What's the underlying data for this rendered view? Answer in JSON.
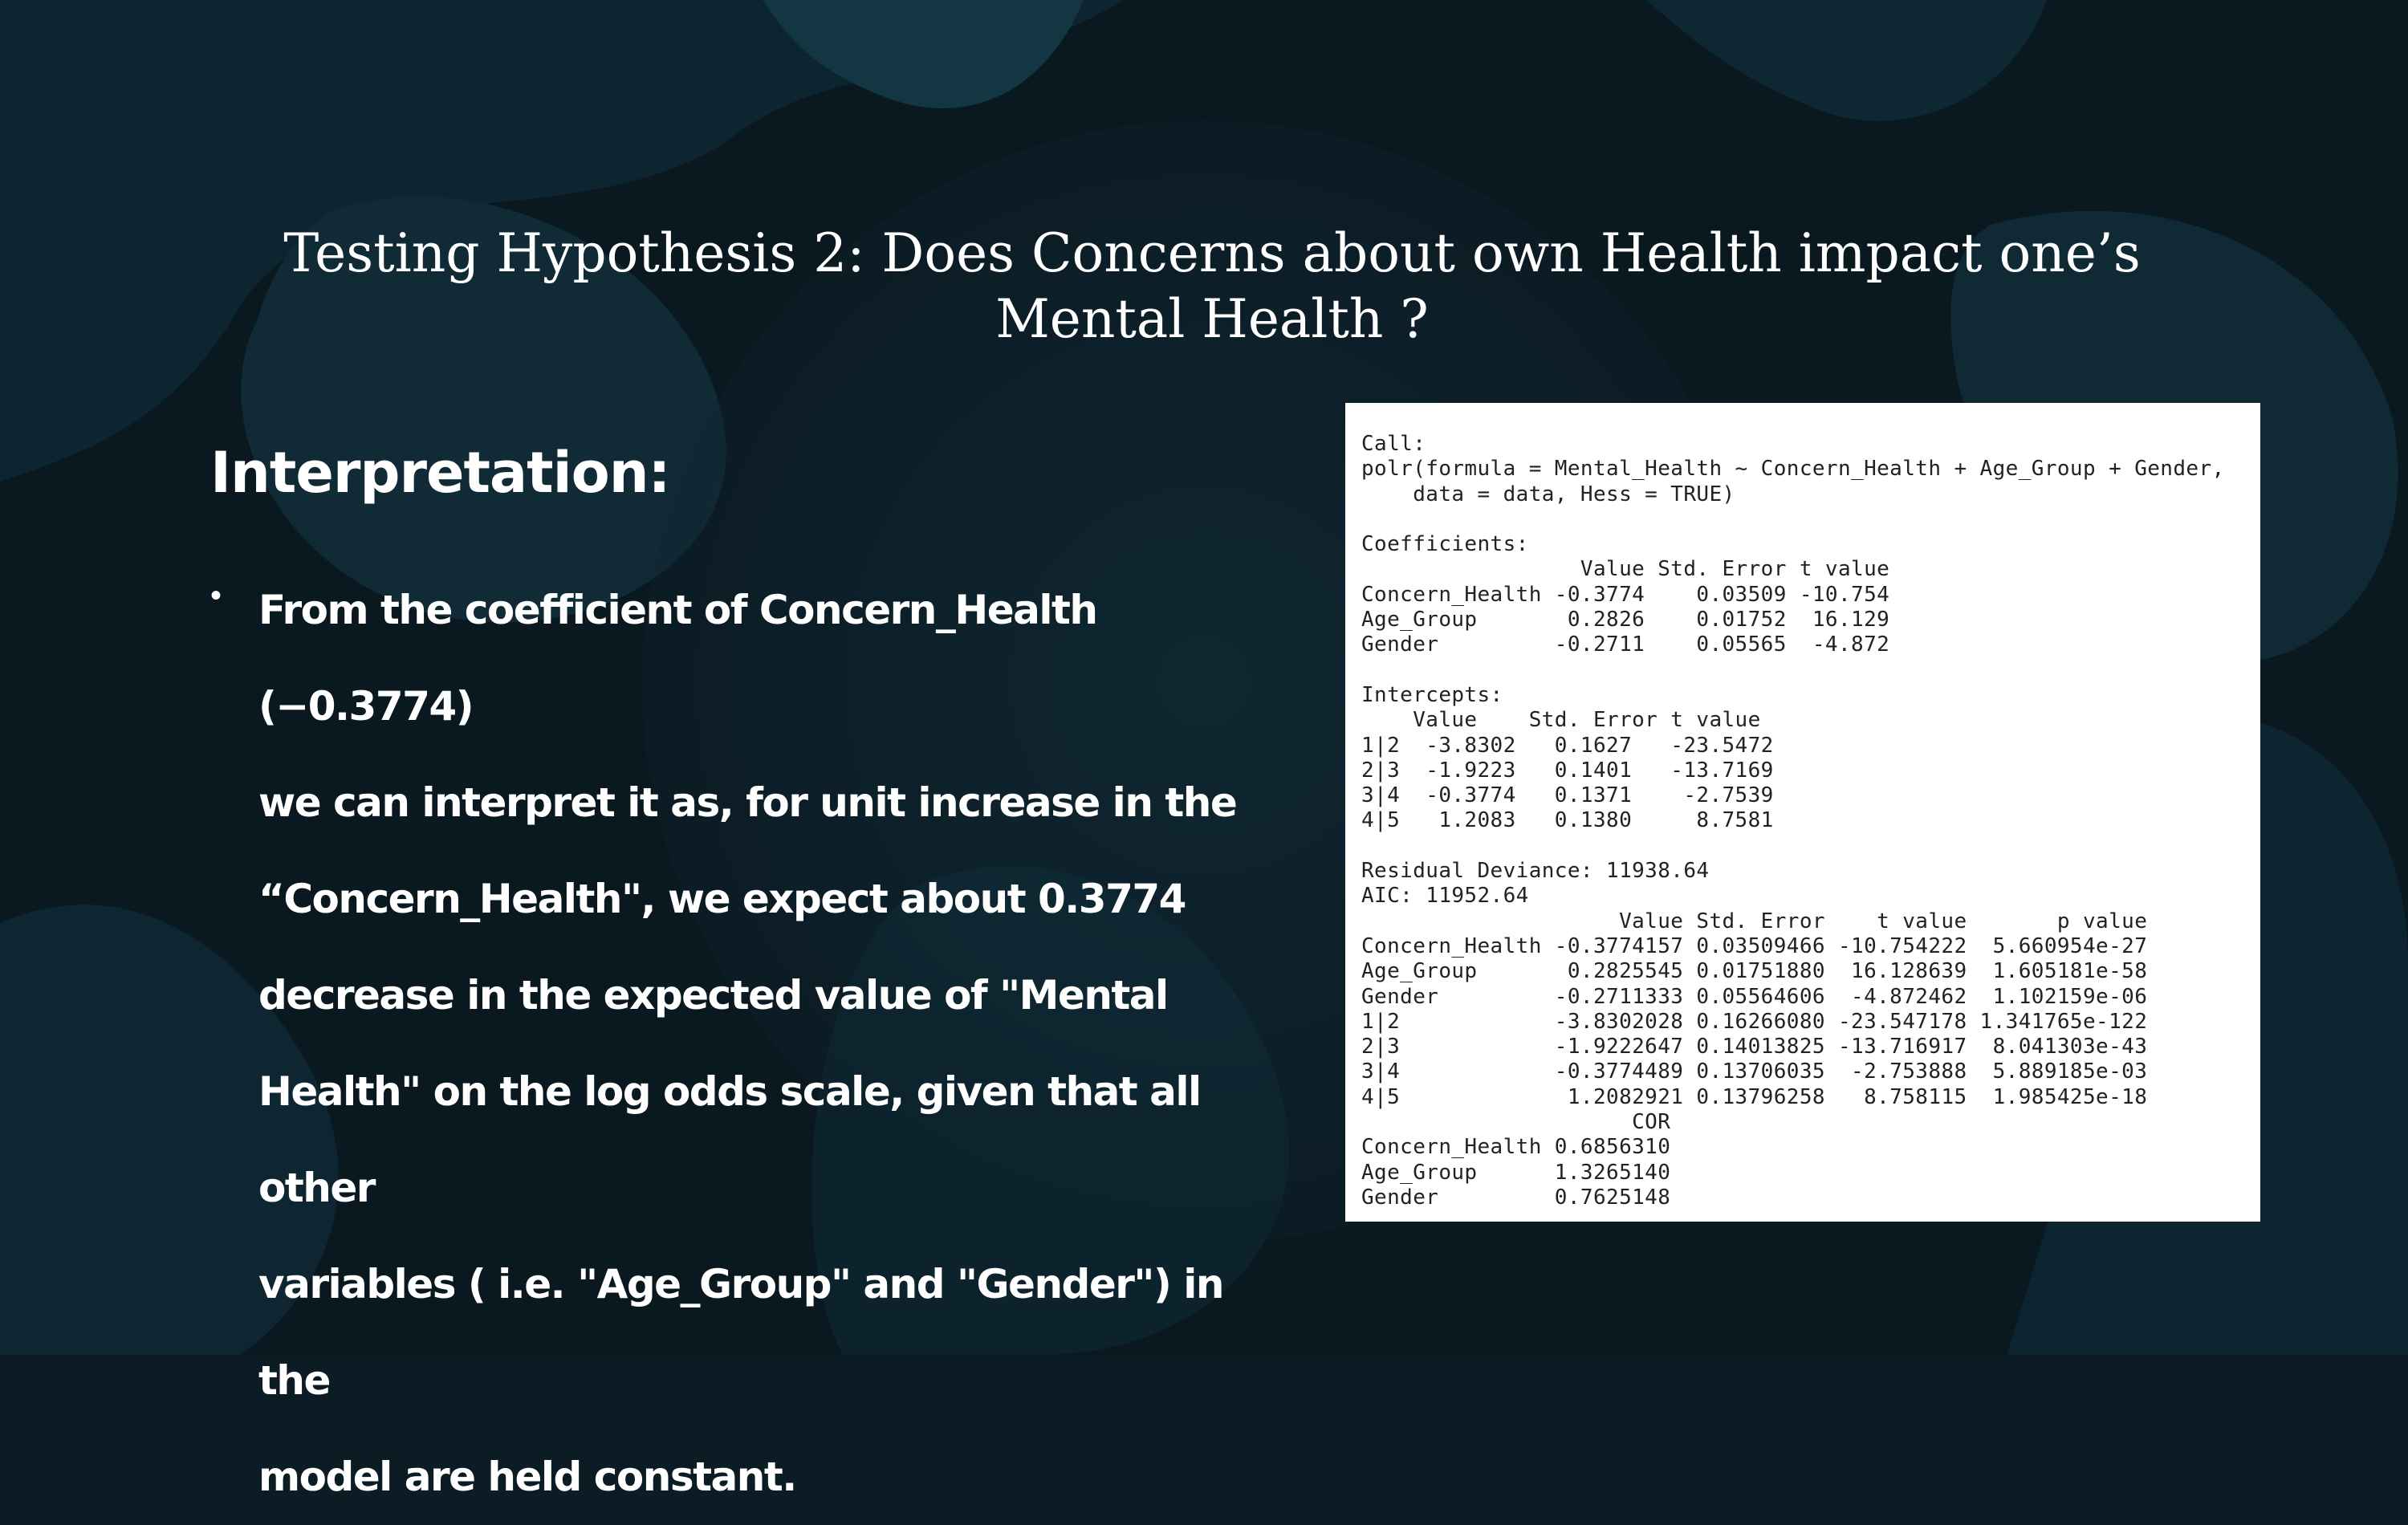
{
  "slide": {
    "title": "Testing Hypothesis 2: Does Concerns about own Health impact one’s Mental Health ?",
    "heading": "Interpretation:",
    "bullet_text": "From the coefficient of Concern_Health (−0.3774)\nwe can interpret it as, for unit increase in the\n“Concern_Health\", we expect about 0.3774\ndecrease in the  expected value of \"Mental\nHealth\" on the log odds scale, given that all other\nvariables ( i.e. \"Age_Group\" and \"Gender\") in the\nmodel are held constant."
  },
  "r_output": {
    "lines": [
      "Call:",
      "polr(formula = Mental_Health ~ Concern_Health + Age_Group + Gender,",
      "    data = data, Hess = TRUE)",
      "",
      "Coefficients:",
      "                 Value Std. Error t value",
      "Concern_Health -0.3774    0.03509 -10.754",
      "Age_Group       0.2826    0.01752  16.129",
      "Gender         -0.2711    0.05565  -4.872",
      "",
      "Intercepts:",
      "    Value    Std. Error t value",
      "1|2  -3.8302   0.1627   -23.5472",
      "2|3  -1.9223   0.1401   -13.7169",
      "3|4  -0.3774   0.1371    -2.7539",
      "4|5   1.2083   0.1380     8.7581",
      "",
      "Residual Deviance: 11938.64",
      "AIC: 11952.64",
      "                    Value Std. Error    t value       p value",
      "Concern_Health -0.3774157 0.03509466 -10.754222  5.660954e-27",
      "Age_Group       0.2825545 0.01751880  16.128639  1.605181e-58",
      "Gender         -0.2711333 0.05564606  -4.872462  1.102159e-06",
      "1|2            -3.8302028 0.16266080 -23.547178 1.341765e-122",
      "2|3            -1.9222647 0.14013825 -13.716917  8.041303e-43",
      "3|4            -0.3774489 0.13706035  -2.753888  5.889185e-03",
      "4|5             1.2082921 0.13796258   8.758115  1.985425e-18",
      "                     COR",
      "Concern_Health 0.6856310",
      "Age_Group      1.3265140",
      "Gender         0.7625148"
    ]
  },
  "colors": {
    "background": "#0b1c25",
    "text": "#ffffff",
    "panel": "#ffffff",
    "code_text": "#222222"
  }
}
